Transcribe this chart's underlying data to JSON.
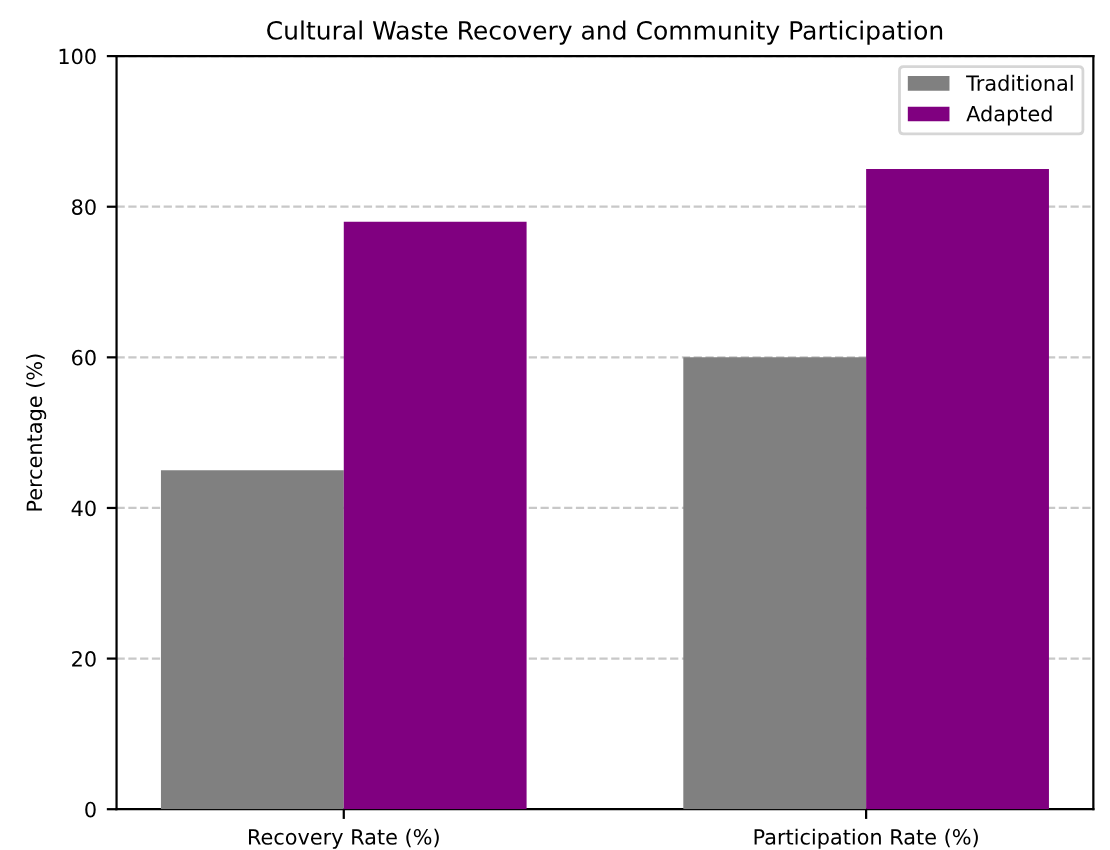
{
  "chart_data": {
    "type": "bar",
    "title": "Cultural Waste Recovery and Community Participation",
    "ylabel": "Percentage (%)",
    "categories": [
      "Recovery Rate (%)",
      "Participation Rate (%)"
    ],
    "series": [
      {
        "name": "Traditional",
        "color": "#808080",
        "values": [
          45,
          60
        ]
      },
      {
        "name": "Adapted",
        "color": "#800080",
        "values": [
          78,
          85
        ]
      }
    ],
    "ylim": [
      0,
      100
    ],
    "yticks": [
      0,
      20,
      40,
      60,
      80,
      100
    ],
    "grid": "y",
    "line_style": "dashed",
    "legend": "top right"
  }
}
